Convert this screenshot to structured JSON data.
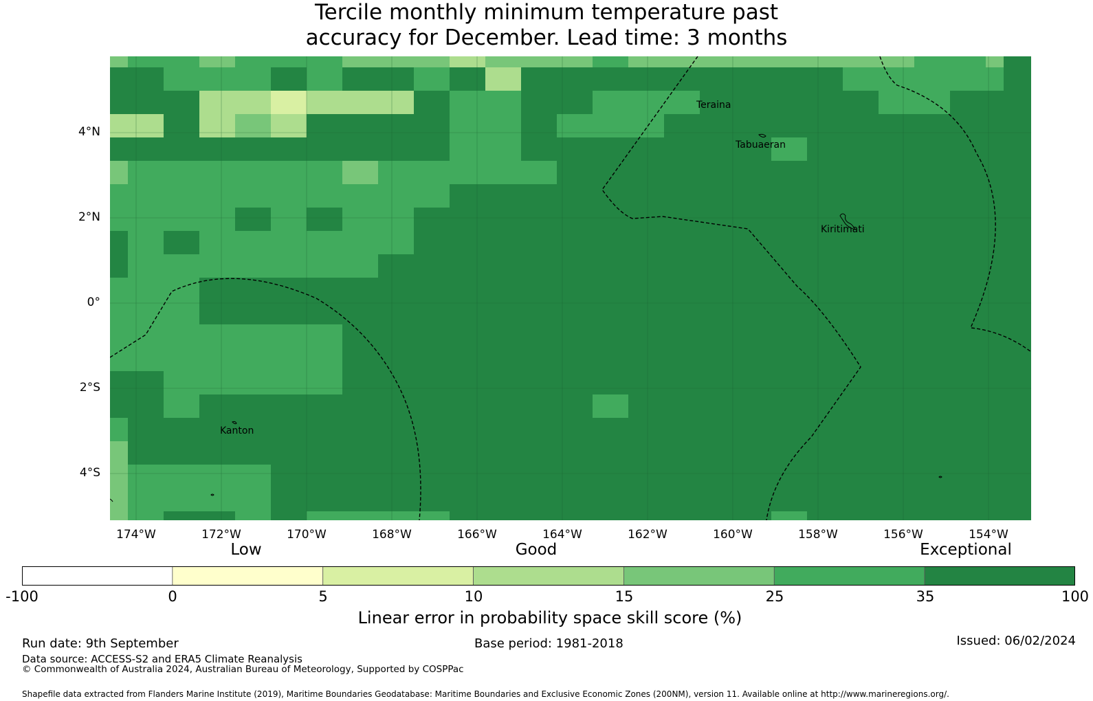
{
  "title": {
    "line1": "Tercile monthly minimum temperature past",
    "line2": "accuracy for December. Lead time: 3 months"
  },
  "map": {
    "y_ticks": [
      "4°N",
      "2°N",
      "0°",
      "2°S",
      "4°S"
    ],
    "x_ticks": [
      "174°W",
      "172°W",
      "170°W",
      "168°W",
      "166°W",
      "164°W",
      "162°W",
      "160°W",
      "158°W",
      "156°W",
      "154°W"
    ],
    "places": [
      "Teraina",
      "Tabuaeran",
      "Kiritimati",
      "Kanton"
    ],
    "colors": {
      "ocean_exceptional": "#238543",
      "boundary_line": "#000000"
    },
    "layers": [
      "skill score grid",
      "maritime boundaries (dashed)",
      "coastlines",
      "graticule"
    ]
  },
  "legend": {
    "categories": [
      "Low",
      "Good",
      "Exceptional"
    ],
    "ticks": [
      "-100",
      "0",
      "5",
      "10",
      "15",
      "25",
      "35",
      "100"
    ],
    "colors": [
      "#ffffff",
      "#ffffcc",
      "#d9f0a3",
      "#addd8e",
      "#78c679",
      "#41ab5d",
      "#238443"
    ],
    "label": "Linear error in probability space skill score (%)"
  },
  "footer": {
    "run_date": "Run date: 9th September",
    "base_period": "Base period: 1981-2018",
    "issued": "Issued: 06/02/2024",
    "data_source": "Data source: ACCESS-S2 and ERA5 Climate Reanalysis",
    "copyright": "© Commonwealth of Australia 2024, Australian Bureau of Meteorology, Supported by COSPPac",
    "shapefile": "Shapefile data extracted from Flanders Marine Institute (2019), Maritime Boundaries Geodatabase: Maritime Boundaries and Exclusive Economic Zones (200NM), version 11. Available online at http://www.marineregions.org/."
  }
}
